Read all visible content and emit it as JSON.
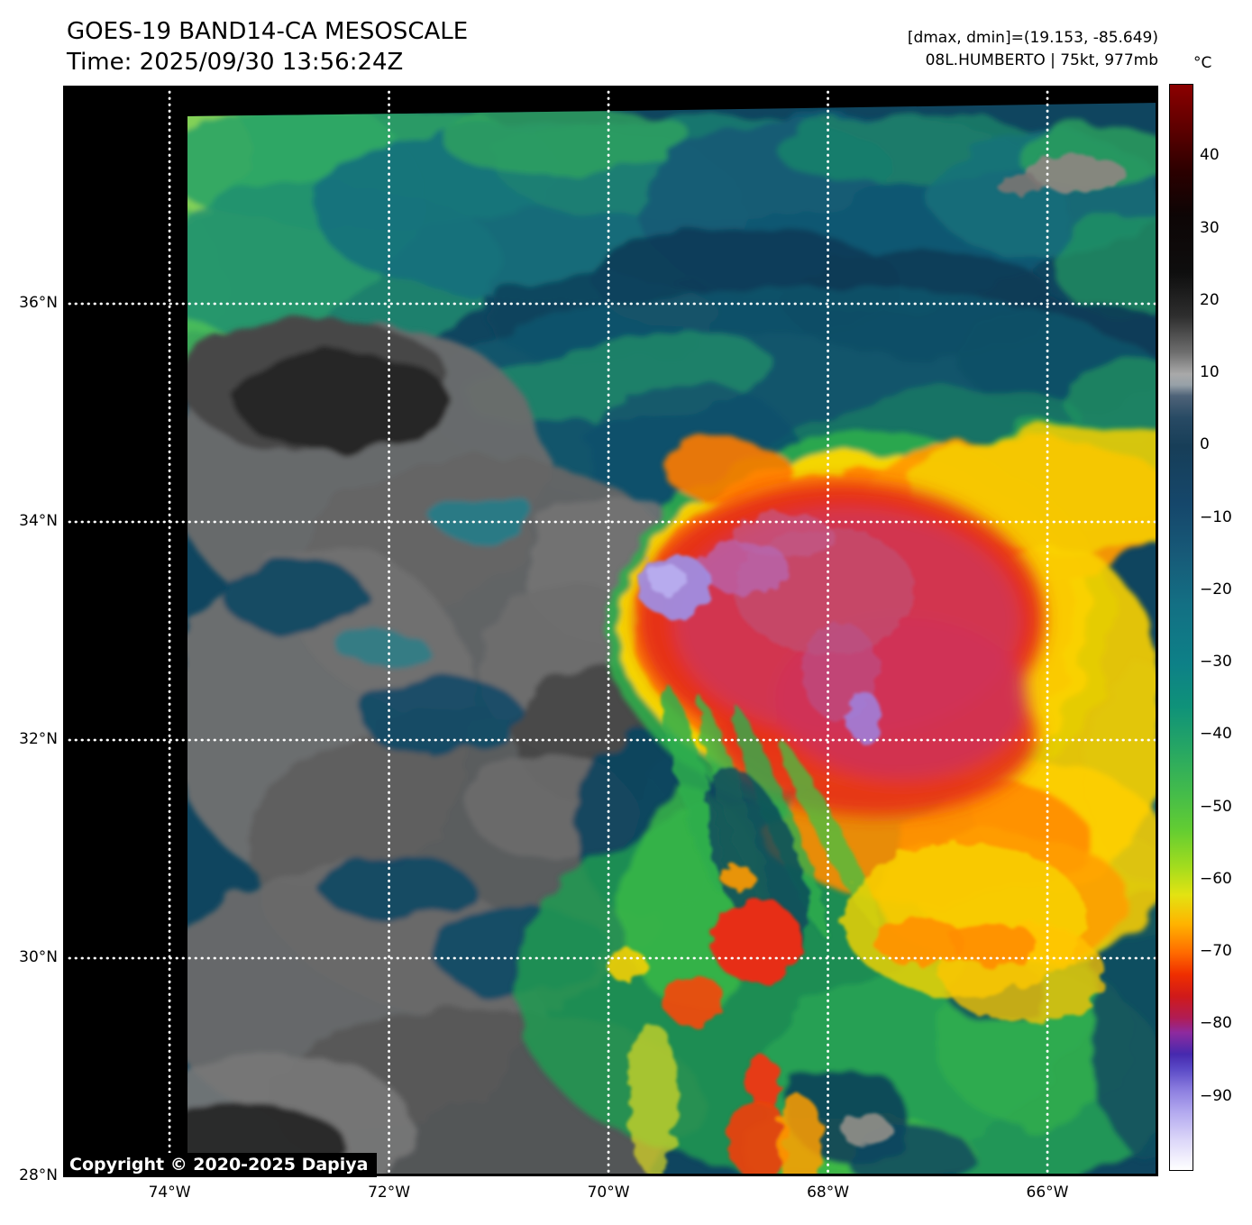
{
  "figure": {
    "title": "GOES-19 BAND14-CA MESOSCALE",
    "timestamp": "Time: 2025/09/30 13:56:24Z",
    "extrema_readout": "[dmax, dmin]=(19.153, -85.649)",
    "storm_readout": "08L.HUMBERTO | 75kt, 977mb",
    "copyright": "Copyright © 2020-2025 Dapiya"
  },
  "map": {
    "gridline_color": "#ffffff",
    "lat_axis": {
      "top_deg": 38.0,
      "bottom_deg": 28.0,
      "ticks": [
        {
          "deg": 36,
          "label": "36°N"
        },
        {
          "deg": 34,
          "label": "34°N"
        },
        {
          "deg": 32,
          "label": "32°N"
        },
        {
          "deg": 30,
          "label": "30°N"
        },
        {
          "deg": 28,
          "label": "28°N"
        }
      ]
    },
    "lon_axis": {
      "left_deg": -74.97,
      "right_deg": -64.99,
      "ticks": [
        {
          "deg": -74,
          "label": "74°W"
        },
        {
          "deg": -72,
          "label": "72°W"
        },
        {
          "deg": -70,
          "label": "70°W"
        },
        {
          "deg": -68,
          "label": "68°W"
        },
        {
          "deg": -66,
          "label": "66°W"
        }
      ]
    }
  },
  "colorbar": {
    "unit": "°C",
    "value_max": 50,
    "value_min": -100,
    "ticks": [
      {
        "v": 40,
        "label": "40"
      },
      {
        "v": 30,
        "label": "30"
      },
      {
        "v": 20,
        "label": "20"
      },
      {
        "v": 10,
        "label": "10"
      },
      {
        "v": 0,
        "label": "0"
      },
      {
        "v": -10,
        "label": "−10"
      },
      {
        "v": -20,
        "label": "−20"
      },
      {
        "v": -30,
        "label": "−30"
      },
      {
        "v": -40,
        "label": "−40"
      },
      {
        "v": -50,
        "label": "−50"
      },
      {
        "v": -60,
        "label": "−60"
      },
      {
        "v": -70,
        "label": "−70"
      },
      {
        "v": -80,
        "label": "−80"
      },
      {
        "v": -90,
        "label": "−90"
      }
    ],
    "stops": [
      {
        "v": 50,
        "c": "#8b0000"
      },
      {
        "v": 44,
        "c": "#5e0000"
      },
      {
        "v": 38,
        "c": "#2b0000"
      },
      {
        "v": 32,
        "c": "#0d0505"
      },
      {
        "v": 24,
        "c": "#0e0e0e"
      },
      {
        "v": 18,
        "c": "#2e2e2e"
      },
      {
        "v": 13,
        "c": "#6e6e6e"
      },
      {
        "v": 10,
        "c": "#a9a9a9"
      },
      {
        "v": 8.5,
        "c": "#97a1a8"
      },
      {
        "v": 7,
        "c": "#4f6378"
      },
      {
        "v": 4,
        "c": "#284a64"
      },
      {
        "v": 0,
        "c": "#173e58"
      },
      {
        "v": -8,
        "c": "#15476b"
      },
      {
        "v": -15,
        "c": "#175a78"
      },
      {
        "v": -22,
        "c": "#137084"
      },
      {
        "v": -30,
        "c": "#0d8087"
      },
      {
        "v": -36,
        "c": "#0f9279"
      },
      {
        "v": -42,
        "c": "#27a763"
      },
      {
        "v": -48,
        "c": "#44bc4a"
      },
      {
        "v": -53,
        "c": "#63cd32"
      },
      {
        "v": -58,
        "c": "#a2dc1e"
      },
      {
        "v": -62,
        "c": "#e3e312"
      },
      {
        "v": -66,
        "c": "#ffb300"
      },
      {
        "v": -70,
        "c": "#ff6a00"
      },
      {
        "v": -73,
        "c": "#ef2e00"
      },
      {
        "v": -76,
        "c": "#d01a1a"
      },
      {
        "v": -79,
        "c": "#b01c55"
      },
      {
        "v": -81,
        "c": "#8e2a9e"
      },
      {
        "v": -84,
        "c": "#4629ae"
      },
      {
        "v": -86,
        "c": "#5a49c6"
      },
      {
        "v": -89,
        "c": "#8d7fe0"
      },
      {
        "v": -92,
        "c": "#b3a9ef"
      },
      {
        "v": -96,
        "c": "#ddd8f9"
      },
      {
        "v": -100,
        "c": "#ffffff"
      }
    ]
  },
  "chart_data": {
    "type": "heatmap",
    "title": "GOES-19 BAND14-CA MESOSCALE",
    "subtitle": "Time: 2025/09/30 13:56:24Z",
    "colorbar_unit": "°C",
    "colorbar_ticks": [
      40,
      30,
      20,
      10,
      0,
      -10,
      -20,
      -30,
      -40,
      -50,
      -60,
      -70,
      -80,
      -90
    ],
    "value_range_c": [
      -100,
      50
    ],
    "lat_ticks_deg_n": [
      36,
      34,
      32,
      30,
      28
    ],
    "lon_ticks_deg_w": [
      74,
      72,
      70,
      68,
      66
    ],
    "lat_range_deg_n": [
      28,
      38
    ],
    "lon_range_deg_w": [
      75,
      65
    ],
    "readouts": {
      "dmax_c": 19.153,
      "dmin_c": -85.649,
      "storm_id": "08L",
      "storm_name": "HUMBERTO",
      "wind_kt": 75,
      "pressure_mb": 977
    },
    "legend_position": "right",
    "grid": true
  }
}
